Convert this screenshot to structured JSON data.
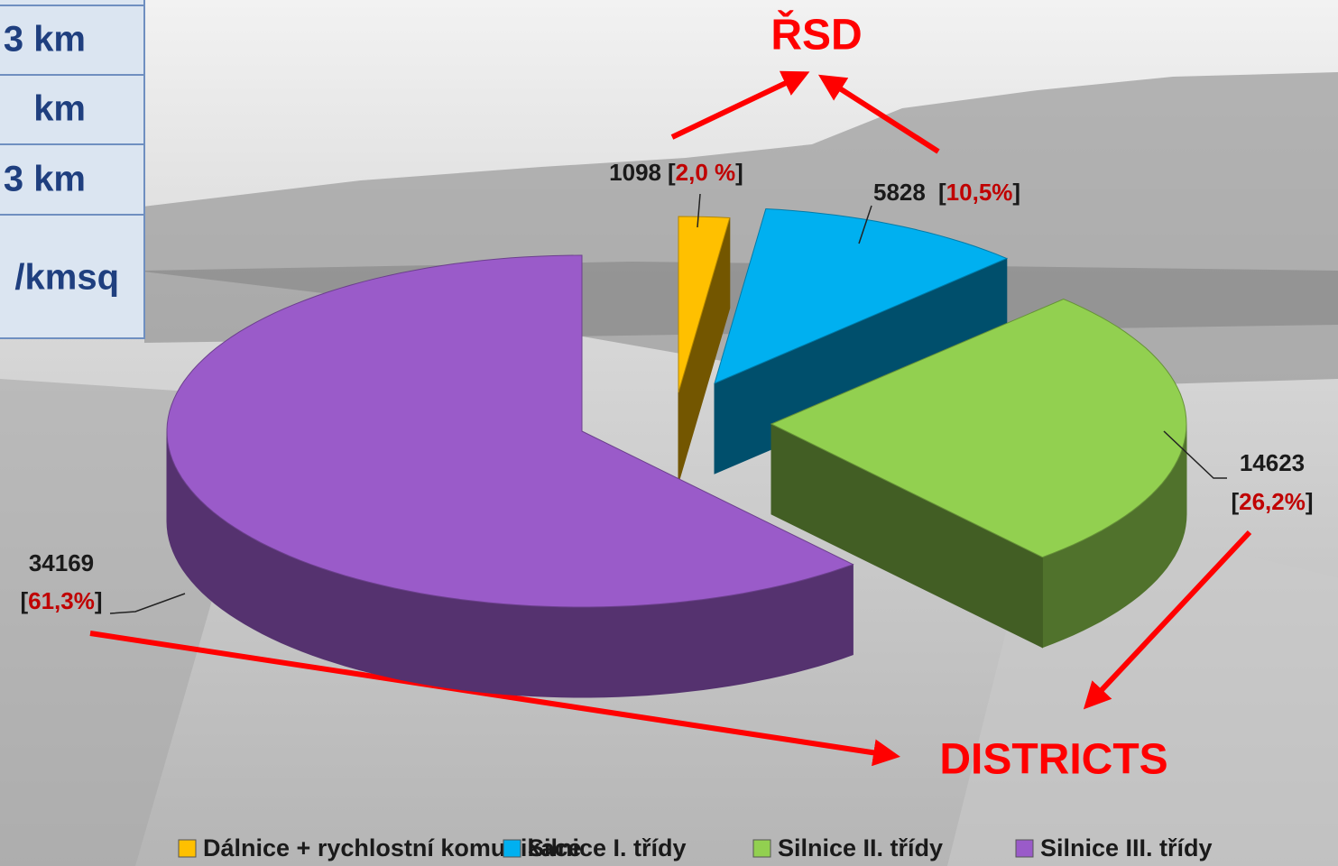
{
  "chart_data": {
    "type": "pie3d",
    "categories": [
      "Dálnice + rychlostní komunikace",
      "Silnice I. třídy",
      "Silnice II. třídy",
      "Silnice III. třídy"
    ],
    "values": [
      1098,
      5828,
      14623,
      34169
    ],
    "percent_labels": [
      "[2,0 %]",
      "[10,5%]",
      "[26,2%]",
      "[61,3%]"
    ],
    "colors": [
      "#ffc000",
      "#00b0f0",
      "#92d050",
      "#9a5bc9"
    ],
    "annotations": [
      "ŘSD",
      "DISTRICTS"
    ],
    "legend": "bottom"
  },
  "table": {
    "rows": [
      [
        "3 km"
      ],
      [
        "km"
      ],
      [
        "3 km"
      ],
      [
        "/kmsq"
      ]
    ]
  }
}
